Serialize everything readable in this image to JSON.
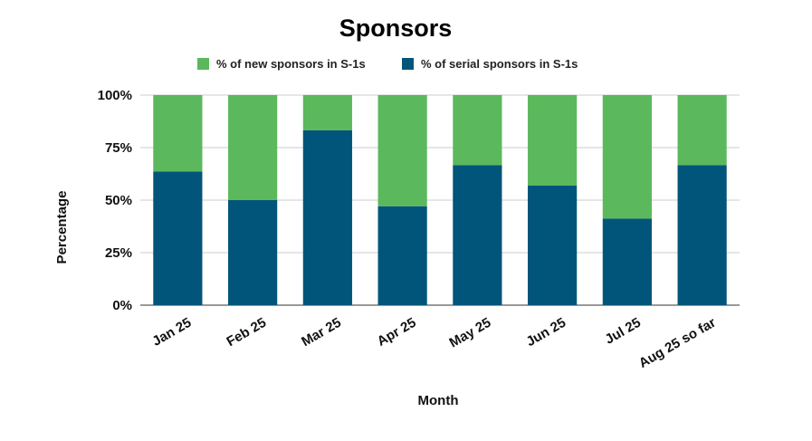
{
  "chart_data": {
    "type": "bar",
    "stacked": true,
    "title": "Sponsors",
    "xlabel": "Month",
    "ylabel": "Percentage",
    "ylim": [
      0,
      100
    ],
    "yticks": [
      "0%",
      "25%",
      "50%",
      "75%",
      "100%"
    ],
    "ytick_values": [
      0,
      25,
      50,
      75,
      100
    ],
    "grid": true,
    "legend_position": "top",
    "categories": [
      "Jan 25",
      "Feb 25",
      "Mar 25",
      "Apr 25",
      "May 25",
      "Jun 25",
      "Jul 25",
      "Aug 25 so far"
    ],
    "series": [
      {
        "name": "% of serial sponsors in S-1s",
        "color": "#02557a",
        "values": [
          63.6,
          50.0,
          83.3,
          47.1,
          66.7,
          56.9,
          41.2,
          66.7
        ]
      },
      {
        "name": "% of new sponsors in S-1s",
        "color": "#5cb85c",
        "values": [
          36.4,
          50.0,
          16.7,
          52.9,
          33.3,
          43.1,
          58.8,
          33.3
        ]
      }
    ],
    "legend_order": [
      1,
      0
    ]
  }
}
